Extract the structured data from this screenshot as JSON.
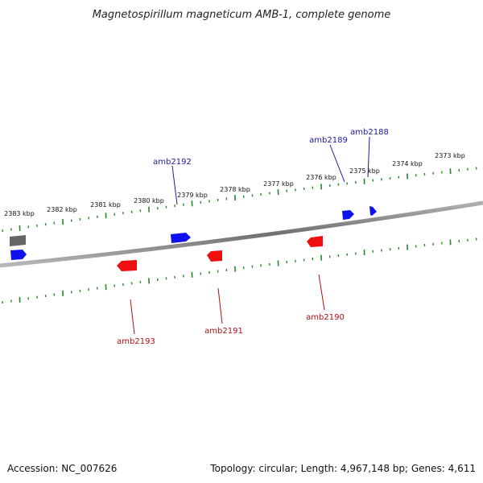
{
  "title": "Magnetospirillum magneticum AMB-1, complete genome",
  "footer": {
    "accession": "Accession: NC_007626",
    "summary": "Topology: circular; Length: 4,967,148 bp; Genes: 4,611"
  },
  "colors": {
    "forward_gene": "#1010ee",
    "reverse_gene": "#ee1010",
    "other_gene": "#666666",
    "tick": "#228b22",
    "backbone": "#808080",
    "forward_label": "#1a1aa0",
    "reverse_label": "#b01010"
  },
  "scale_labels": [
    "2383 kbp",
    "2382 kbp",
    "2381 kbp",
    "2380 kbp",
    "2379 kbp",
    "2378 kbp",
    "2377 kbp",
    "2376 kbp",
    "2375 kbp",
    "2374 kbp",
    "2373 kbp"
  ],
  "gene_labels": {
    "amb2192": "amb2192",
    "amb2189": "amb2189",
    "amb2188": "amb2188",
    "amb2193": "amb2193",
    "amb2191": "amb2191",
    "amb2190": "amb2190"
  }
}
